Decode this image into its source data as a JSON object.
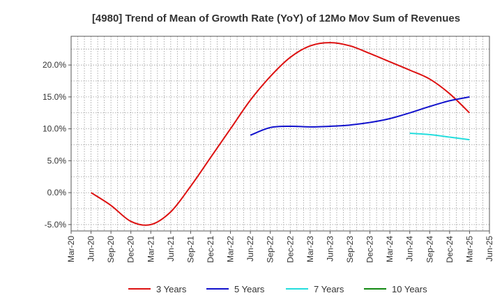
{
  "chart_data": {
    "type": "line",
    "title": "[4980]  Trend of Mean of Growth Rate (YoY) of 12Mo Mov Sum of Revenues",
    "xlabel": "",
    "ylabel": "",
    "grid": true,
    "legend_position": "bottom",
    "x_ticks": [
      "Mar-20",
      "Jun-20",
      "Sep-20",
      "Dec-20",
      "Mar-21",
      "Jun-21",
      "Sep-21",
      "Dec-21",
      "Mar-22",
      "Jun-22",
      "Sep-22",
      "Dec-22",
      "Mar-23",
      "Jun-23",
      "Sep-23",
      "Dec-23",
      "Mar-24",
      "Jun-24",
      "Sep-24",
      "Dec-24",
      "Mar-25",
      "Jun-25"
    ],
    "y_ticks": [
      -5,
      0,
      5,
      10,
      15,
      20
    ],
    "y_tick_labels": [
      "-5.0%",
      "0.0%",
      "5.0%",
      "10.0%",
      "15.0%",
      "20.0%"
    ],
    "ylim": [
      -6,
      24.5
    ],
    "series": [
      {
        "name": "3 Years",
        "color": "#dd1111",
        "points": [
          [
            "Jun-20",
            0.0
          ],
          [
            "Sep-20",
            -2.0
          ],
          [
            "Dec-20",
            -4.5
          ],
          [
            "Mar-21",
            -5.0
          ],
          [
            "Jun-21",
            -3.0
          ],
          [
            "Sep-21",
            1.0
          ],
          [
            "Dec-21",
            5.5
          ],
          [
            "Mar-22",
            10.0
          ],
          [
            "Jun-22",
            14.5
          ],
          [
            "Sep-22",
            18.2
          ],
          [
            "Dec-22",
            21.2
          ],
          [
            "Mar-23",
            23.0
          ],
          [
            "Jun-23",
            23.5
          ],
          [
            "Sep-23",
            23.0
          ],
          [
            "Dec-23",
            21.8
          ],
          [
            "Mar-24",
            20.5
          ],
          [
            "Jun-24",
            19.2
          ],
          [
            "Sep-24",
            17.8
          ],
          [
            "Dec-24",
            15.5
          ],
          [
            "Mar-25",
            12.5
          ]
        ]
      },
      {
        "name": "5 Years",
        "color": "#1111cc",
        "points": [
          [
            "Jun-22",
            9.0
          ],
          [
            "Sep-22",
            10.2
          ],
          [
            "Dec-22",
            10.4
          ],
          [
            "Mar-23",
            10.3
          ],
          [
            "Jun-23",
            10.4
          ],
          [
            "Sep-23",
            10.6
          ],
          [
            "Dec-23",
            11.0
          ],
          [
            "Mar-24",
            11.6
          ],
          [
            "Jun-24",
            12.5
          ],
          [
            "Sep-24",
            13.5
          ],
          [
            "Dec-24",
            14.4
          ],
          [
            "Mar-25",
            15.0
          ]
        ]
      },
      {
        "name": "7 Years",
        "color": "#22dddd",
        "points": [
          [
            "Jun-24",
            9.3
          ],
          [
            "Sep-24",
            9.1
          ],
          [
            "Dec-24",
            8.7
          ],
          [
            "Mar-25",
            8.3
          ]
        ]
      },
      {
        "name": "10 Years",
        "color": "#118811",
        "points": []
      }
    ]
  }
}
